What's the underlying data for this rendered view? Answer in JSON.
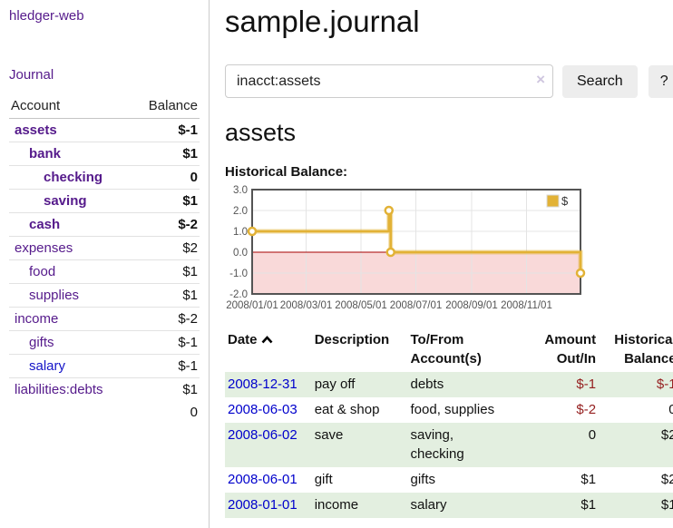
{
  "app": {
    "brand": "hledger-web",
    "nav_journal": "Journal"
  },
  "header": {
    "title": "sample.journal"
  },
  "search": {
    "value": "inacct:assets",
    "clear_label": "×",
    "button": "Search",
    "help": "?"
  },
  "sidebar_table": {
    "col_account": "Account",
    "col_balance": "Balance",
    "rows": [
      {
        "label": "assets",
        "indent": 0,
        "bold": true,
        "balance": "$-1",
        "balance_tone": "negative-strong",
        "link_tone": "purple"
      },
      {
        "label": "bank",
        "indent": 1,
        "bold": true,
        "balance": "$1",
        "balance_tone": "normal",
        "link_tone": "purple"
      },
      {
        "label": "checking",
        "indent": 2,
        "bold": true,
        "balance": "0",
        "balance_tone": "normal",
        "link_tone": "purple"
      },
      {
        "label": "saving",
        "indent": 2,
        "bold": true,
        "balance": "$1",
        "balance_tone": "normal",
        "link_tone": "purple"
      },
      {
        "label": "cash",
        "indent": 1,
        "bold": true,
        "balance": "$-2",
        "balance_tone": "negative-strong",
        "link_tone": "purple"
      },
      {
        "label": "expenses",
        "indent": 0,
        "bold": false,
        "balance": "$2",
        "balance_tone": "normal",
        "link_tone": "purple"
      },
      {
        "label": "food",
        "indent": 1,
        "bold": false,
        "balance": "$1",
        "balance_tone": "normal",
        "link_tone": "purple"
      },
      {
        "label": "supplies",
        "indent": 1,
        "bold": false,
        "balance": "$1",
        "balance_tone": "normal",
        "link_tone": "purple"
      },
      {
        "label": "income",
        "indent": 0,
        "bold": false,
        "balance": "$-2",
        "balance_tone": "negative-muted",
        "link_tone": "purple"
      },
      {
        "label": "gifts",
        "indent": 1,
        "bold": false,
        "balance": "$-1",
        "balance_tone": "negative-muted",
        "link_tone": "purple"
      },
      {
        "label": "salary",
        "indent": 1,
        "bold": false,
        "balance": "$-1",
        "balance_tone": "negative-muted",
        "link_tone": "blue"
      },
      {
        "label": "liabilities:debts",
        "indent": 0,
        "bold": false,
        "balance": "$1",
        "balance_tone": "normal",
        "link_tone": "purple"
      }
    ],
    "total": "0"
  },
  "account_page": {
    "title": "assets",
    "chart_label": "Historical Balance:"
  },
  "chart_data": {
    "type": "line",
    "style": "step",
    "title": "Historical Balance:",
    "x_range": [
      "2008-01-01",
      "2008-12-31"
    ],
    "ylim": [
      -2,
      3
    ],
    "yticks": [
      3.0,
      2.0,
      1.0,
      0.0,
      -1.0,
      -2.0
    ],
    "xticks": [
      {
        "date": "2008-01-01",
        "label": "2008/01/01"
      },
      {
        "date": "2008-03-01",
        "label": "2008/03/01"
      },
      {
        "date": "2008-05-01",
        "label": "2008/05/01"
      },
      {
        "date": "2008-07-01",
        "label": "2008/07/01"
      },
      {
        "date": "2008-09-01",
        "label": "2008/09/01"
      },
      {
        "date": "2008-11-01",
        "label": "2008/11/01"
      }
    ],
    "series": [
      {
        "name": "$",
        "points": [
          [
            "2008-01-01",
            1
          ],
          [
            "2008-06-01",
            2
          ],
          [
            "2008-06-03",
            0
          ],
          [
            "2008-12-31",
            -1
          ]
        ]
      }
    ],
    "legend_position": "top-right",
    "grid": true,
    "colors": {
      "line": "#e2b236",
      "marker_fill": "#ffffff",
      "negative_region": "#f9d9d9",
      "zero_line": "#a60000",
      "border": "#545454",
      "grid": "#e4e4e4",
      "tick_text": "#545454"
    }
  },
  "register_table": {
    "headers": {
      "date": "Date",
      "description": "Description",
      "accounts": "To/From Account(s)",
      "amount": "Amount Out/In",
      "balance": "Historical Balance"
    },
    "rows": [
      {
        "date": "2008-12-31",
        "description": "pay off",
        "accounts": "debts",
        "amount": "$-1",
        "amount_negative": true,
        "balance": "$-1",
        "balance_negative": true
      },
      {
        "date": "2008-06-03",
        "description": "eat & shop",
        "accounts": "food, supplies",
        "amount": "$-2",
        "amount_negative": true,
        "balance": "0",
        "balance_negative": false
      },
      {
        "date": "2008-06-02",
        "description": "save",
        "accounts": "saving,\nchecking",
        "amount": "0",
        "amount_negative": false,
        "balance": "$2",
        "balance_negative": false
      },
      {
        "date": "2008-06-01",
        "description": "gift",
        "accounts": "gifts",
        "amount": "$1",
        "amount_negative": false,
        "balance": "$2",
        "balance_negative": false
      },
      {
        "date": "2008-01-01",
        "description": "income",
        "accounts": "salary",
        "amount": "$1",
        "amount_negative": false,
        "balance": "$1",
        "balance_negative": false
      }
    ]
  },
  "colors": {
    "link_purple": "#551a8b",
    "link_blue": "#0000cc",
    "negative_strong": "#8b0000",
    "negative_muted": "#c26a6a",
    "table_negative": "#952020",
    "row_green": "#e3efe0",
    "button_bg": "#ededed"
  }
}
